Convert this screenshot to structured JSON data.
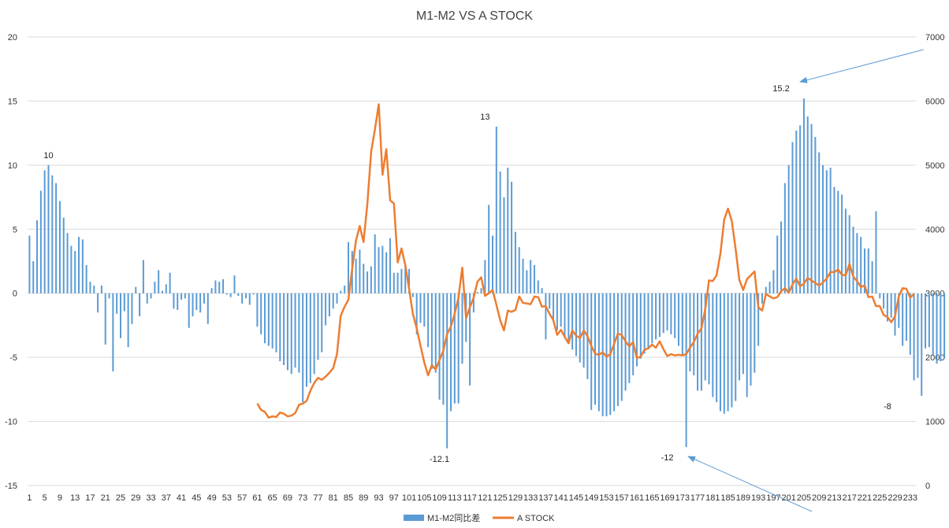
{
  "chart_data": {
    "type": "bar-line-combo",
    "title": "M1-M2 VS A STOCK",
    "legend": {
      "position": "bottom",
      "entries": [
        "M1-M2同比差",
        "A STOCK"
      ]
    },
    "colors": {
      "bar": "#5B9BD5",
      "line": "#ED7D31",
      "arrow": "#5B9BD5",
      "grid": "#D9D9D9"
    },
    "grid": true,
    "y_left": {
      "range": [
        -15,
        20
      ],
      "ticks": [
        20,
        15,
        10,
        5,
        0,
        -5,
        -10,
        -15
      ]
    },
    "y_right": {
      "range": [
        0,
        7000
      ],
      "ticks": [
        7000,
        6000,
        5000,
        4000,
        3000,
        2000,
        1000,
        0
      ]
    },
    "x_ticks": [
      1,
      5,
      9,
      13,
      17,
      21,
      25,
      29,
      33,
      37,
      41,
      45,
      49,
      53,
      57,
      61,
      65,
      69,
      73,
      77,
      81,
      85,
      89,
      93,
      97,
      101,
      105,
      109,
      113,
      117,
      121,
      125,
      129,
      133,
      137,
      141,
      145,
      149,
      153,
      157,
      161,
      165,
      169,
      173,
      177,
      181,
      185,
      189,
      193,
      197,
      201,
      205,
      209,
      213,
      217,
      221,
      225,
      229,
      233
    ],
    "annotations": [
      {
        "text": "10",
        "x": 6,
        "value": 10
      },
      {
        "text": "13",
        "x": 121,
        "value": 13
      },
      {
        "text": "15.2",
        "x": 199,
        "value": 15.2
      },
      {
        "text": "-12.1",
        "x": 109,
        "value": -12.1
      },
      {
        "text": "-12",
        "x": 169,
        "value": -12
      },
      {
        "text": "-8",
        "x": 227,
        "value": -8
      }
    ],
    "series": [
      {
        "name": "M1-M2同比差",
        "type": "bar",
        "x_start": 1,
        "values": [
          4.5,
          2.5,
          5.7,
          8,
          9.6,
          10,
          9.2,
          8.6,
          7.2,
          5.9,
          4.7,
          3.7,
          3.3,
          4.4,
          4.2,
          2.2,
          0.9,
          0.6,
          -1.5,
          0.6,
          -4,
          -0.4,
          -6.1,
          -1.6,
          -3.5,
          -1.4,
          -4.2,
          -2.4,
          0.5,
          -1.8,
          2.6,
          -0.8,
          -0.4,
          0.9,
          1.8,
          0.2,
          0.7,
          1.6,
          -1.2,
          -1.3,
          -0.5,
          -0.4,
          -2.7,
          -1.8,
          -1.3,
          -1.5,
          -0.8,
          -2.4,
          0.4,
          1,
          0.9,
          1.1,
          -0.1,
          -0.3,
          1.4,
          -0.2,
          -0.8,
          -0.4,
          -0.9,
          -0.1,
          -2.6,
          -3.2,
          -3.9,
          -4.1,
          -4.3,
          -4.6,
          -5.3,
          -5.6,
          -6,
          -6.3,
          -5.8,
          -6.2,
          -8.5,
          -7.3,
          -7,
          -6.3,
          -5.2,
          -4.6,
          -2.5,
          -1.8,
          -1.2,
          -0.8,
          0.2,
          0.6,
          4,
          3.3,
          2.7,
          3.4,
          2.3,
          1.7,
          2.1,
          4.6,
          3.6,
          3.7,
          3.2,
          4.3,
          1.6,
          1.6,
          1.9,
          2.1,
          1.9,
          -0.3,
          -3.2,
          -2.3,
          -2.6,
          -4.2,
          -5.9,
          -6.2,
          -8.3,
          -8.7,
          -12.1,
          -9.2,
          -8.6,
          -8.6,
          -5.5,
          -3.8,
          -7.2,
          -1.5,
          0.1,
          0.4,
          2.6,
          6.9,
          4.5,
          13,
          9.5,
          7.5,
          9.8,
          8.7,
          4.8,
          3.6,
          2.7,
          1.8,
          2.6,
          2.2,
          1,
          0.4,
          -3.6,
          -1.2,
          -2.1,
          -2.9,
          -2.6,
          -3.5,
          -3.8,
          -4.4,
          -4.9,
          -5.4,
          -5.8,
          -6.7,
          -9.1,
          -8.7,
          -9.2,
          -9.6,
          -9.6,
          -9.5,
          -9.2,
          -8.8,
          -8.4,
          -7.6,
          -7,
          -6.4,
          -5.7,
          -5.1,
          -4.7,
          -4.3,
          -3.9,
          -3.6,
          -3.4,
          -3.1,
          -2.9,
          -3.2,
          -3.5,
          -4.1,
          -4.9,
          -12,
          -6.1,
          -6.4,
          -7.6,
          -7.6,
          -6.8,
          -7.1,
          -8.1,
          -8.5,
          -9.2,
          -9.4,
          -9.2,
          -8.9,
          -8.4,
          -6.8,
          -6.3,
          -8.1,
          -7.2,
          -6.2,
          -4.1,
          -0.8,
          0.5,
          0.9,
          1.8,
          4.5,
          5.6,
          8.6,
          10,
          11.8,
          12.7,
          13.1,
          15.2,
          13.8,
          13.2,
          12.2,
          11,
          10,
          9.6,
          9.8,
          8.3,
          8,
          7.7,
          6.6,
          6.1,
          5.2,
          4.7,
          4.4,
          3.5,
          3.5,
          2.5,
          6.4,
          -0.4,
          -1.2,
          -2.2,
          -1.9,
          -3.3,
          -2.7,
          -4.1,
          -3.7,
          -4.8,
          -6.8,
          -6.6,
          -8,
          -4.3,
          -4.2,
          -4.9,
          -5.5,
          -5.3,
          -5.1
        ]
      },
      {
        "name": "A STOCK",
        "type": "line",
        "points": [
          [
            61,
            1280
          ],
          [
            62,
            1180
          ],
          [
            63,
            1150
          ],
          [
            64,
            1060
          ],
          [
            65,
            1080
          ],
          [
            66,
            1070
          ],
          [
            67,
            1140
          ],
          [
            68,
            1120
          ],
          [
            69,
            1080
          ],
          [
            70,
            1090
          ],
          [
            71,
            1130
          ],
          [
            72,
            1260
          ],
          [
            73,
            1280
          ],
          [
            74,
            1320
          ],
          [
            75,
            1480
          ],
          [
            76,
            1600
          ],
          [
            77,
            1680
          ],
          [
            78,
            1650
          ],
          [
            79,
            1700
          ],
          [
            80,
            1760
          ],
          [
            81,
            1830
          ],
          [
            82,
            2050
          ],
          [
            83,
            2650
          ],
          [
            84,
            2790
          ],
          [
            85,
            2900
          ],
          [
            86,
            3380
          ],
          [
            87,
            3820
          ],
          [
            88,
            4050
          ],
          [
            89,
            3800
          ],
          [
            90,
            4400
          ],
          [
            91,
            5210
          ],
          [
            92,
            5560
          ],
          [
            93,
            5950
          ],
          [
            94,
            4850
          ],
          [
            95,
            5250
          ],
          [
            96,
            4450
          ],
          [
            97,
            4400
          ],
          [
            98,
            3480
          ],
          [
            99,
            3700
          ],
          [
            100,
            3440
          ],
          [
            101,
            3070
          ],
          [
            102,
            2680
          ],
          [
            103,
            2450
          ],
          [
            104,
            2180
          ],
          [
            105,
            1920
          ],
          [
            106,
            1720
          ],
          [
            107,
            1880
          ],
          [
            108,
            1810
          ],
          [
            109,
            1960
          ],
          [
            110,
            2100
          ],
          [
            111,
            2360
          ],
          [
            112,
            2480
          ],
          [
            113,
            2680
          ],
          [
            114,
            2930
          ],
          [
            115,
            3400
          ],
          [
            116,
            2610
          ],
          [
            117,
            2780
          ],
          [
            118,
            2930
          ],
          [
            119,
            3180
          ],
          [
            120,
            3250
          ],
          [
            121,
            2960
          ],
          [
            122,
            3000
          ],
          [
            123,
            3050
          ],
          [
            124,
            2820
          ],
          [
            125,
            2580
          ],
          [
            126,
            2420
          ],
          [
            127,
            2730
          ],
          [
            128,
            2710
          ],
          [
            129,
            2740
          ],
          [
            130,
            2950
          ],
          [
            131,
            2850
          ],
          [
            132,
            2840
          ],
          [
            133,
            2830
          ],
          [
            134,
            2950
          ],
          [
            135,
            2940
          ],
          [
            136,
            2790
          ],
          [
            137,
            2800
          ],
          [
            138,
            2680
          ],
          [
            139,
            2580
          ],
          [
            140,
            2350
          ],
          [
            141,
            2430
          ],
          [
            142,
            2320
          ],
          [
            143,
            2220
          ],
          [
            144,
            2420
          ],
          [
            145,
            2340
          ],
          [
            146,
            2300
          ],
          [
            147,
            2420
          ],
          [
            148,
            2330
          ],
          [
            149,
            2180
          ],
          [
            150,
            2060
          ],
          [
            151,
            2040
          ],
          [
            152,
            2080
          ],
          [
            153,
            2010
          ],
          [
            154,
            2050
          ],
          [
            155,
            2210
          ],
          [
            156,
            2370
          ],
          [
            157,
            2350
          ],
          [
            158,
            2250
          ],
          [
            159,
            2170
          ],
          [
            160,
            2240
          ],
          [
            161,
            1990
          ],
          [
            162,
            2010
          ],
          [
            163,
            2120
          ],
          [
            164,
            2140
          ],
          [
            165,
            2200
          ],
          [
            166,
            2150
          ],
          [
            167,
            2250
          ],
          [
            168,
            2130
          ],
          [
            169,
            2020
          ],
          [
            170,
            2050
          ],
          [
            171,
            2030
          ],
          [
            172,
            2040
          ],
          [
            173,
            2030
          ],
          [
            174,
            2050
          ],
          [
            175,
            2150
          ],
          [
            176,
            2240
          ],
          [
            177,
            2370
          ],
          [
            178,
            2450
          ],
          [
            179,
            2750
          ],
          [
            180,
            3200
          ],
          [
            181,
            3190
          ],
          [
            182,
            3280
          ],
          [
            183,
            3620
          ],
          [
            184,
            4150
          ],
          [
            185,
            4320
          ],
          [
            186,
            4130
          ],
          [
            187,
            3700
          ],
          [
            188,
            3210
          ],
          [
            189,
            3050
          ],
          [
            190,
            3220
          ],
          [
            191,
            3280
          ],
          [
            192,
            3340
          ],
          [
            193,
            2780
          ],
          [
            194,
            2730
          ],
          [
            195,
            2990
          ],
          [
            196,
            2950
          ],
          [
            197,
            2920
          ],
          [
            198,
            2940
          ],
          [
            199,
            3030
          ],
          [
            200,
            3080
          ],
          [
            201,
            3010
          ],
          [
            202,
            3140
          ],
          [
            203,
            3230
          ],
          [
            204,
            3110
          ],
          [
            205,
            3150
          ],
          [
            206,
            3240
          ],
          [
            207,
            3200
          ],
          [
            208,
            3160
          ],
          [
            209,
            3120
          ],
          [
            210,
            3170
          ],
          [
            211,
            3230
          ],
          [
            212,
            3330
          ],
          [
            213,
            3330
          ],
          [
            214,
            3370
          ],
          [
            215,
            3290
          ],
          [
            216,
            3280
          ],
          [
            217,
            3460
          ],
          [
            218,
            3260
          ],
          [
            219,
            3190
          ],
          [
            220,
            3100
          ],
          [
            221,
            3120
          ],
          [
            222,
            2940
          ],
          [
            223,
            2950
          ],
          [
            224,
            2800
          ],
          [
            225,
            2800
          ],
          [
            226,
            2660
          ],
          [
            227,
            2630
          ],
          [
            228,
            2550
          ],
          [
            229,
            2640
          ],
          [
            230,
            2950
          ],
          [
            231,
            3080
          ],
          [
            232,
            3070
          ],
          [
            233,
            2930
          ],
          [
            234,
            2990
          ]
        ]
      }
    ]
  }
}
